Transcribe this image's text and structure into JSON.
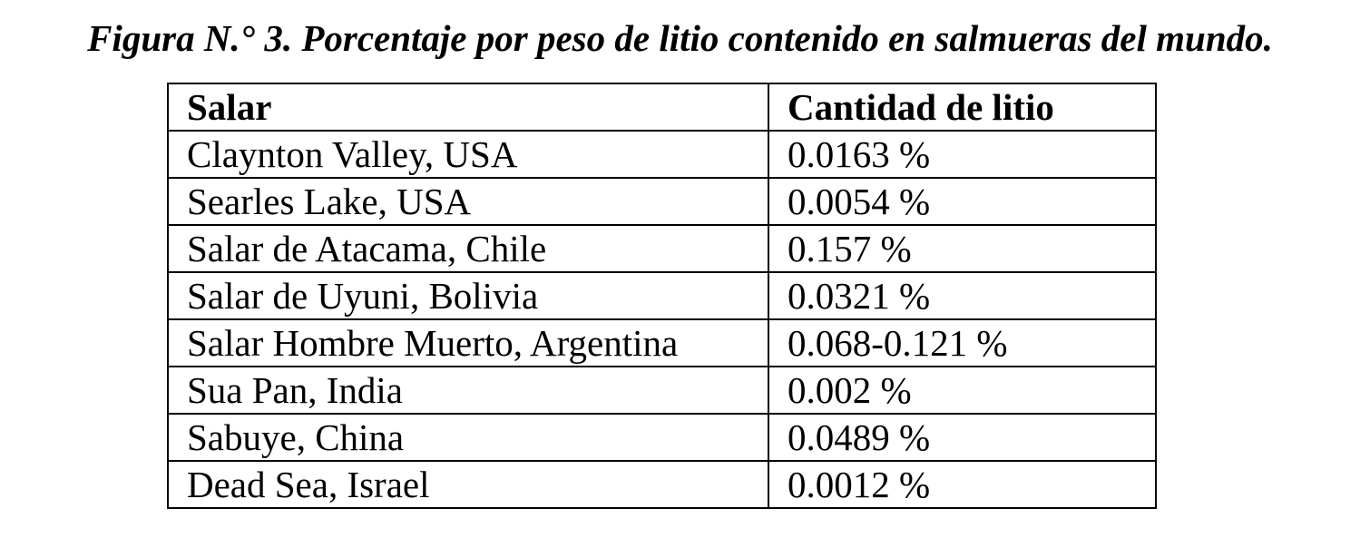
{
  "caption": "Figura N.° 3. Porcentaje por peso de litio contenido en salmueras del mundo.",
  "table": {
    "headers": [
      "Salar",
      "Cantidad de litio"
    ],
    "rows": [
      [
        "Claynton Valley, USA",
        "0.0163 %"
      ],
      [
        "Searles Lake, USA",
        "0.0054 %"
      ],
      [
        "Salar de Atacama, Chile",
        "0.157 %"
      ],
      [
        "Salar de Uyuni, Bolivia",
        "0.0321 %"
      ],
      [
        "Salar Hombre Muerto, Argentina",
        "0.068-0.121 %"
      ],
      [
        "Sua Pan, India",
        "0.002 %"
      ],
      [
        "Sabuye, China",
        "0.0489 %"
      ],
      [
        "Dead Sea, Israel",
        "0.0012 %"
      ]
    ]
  }
}
